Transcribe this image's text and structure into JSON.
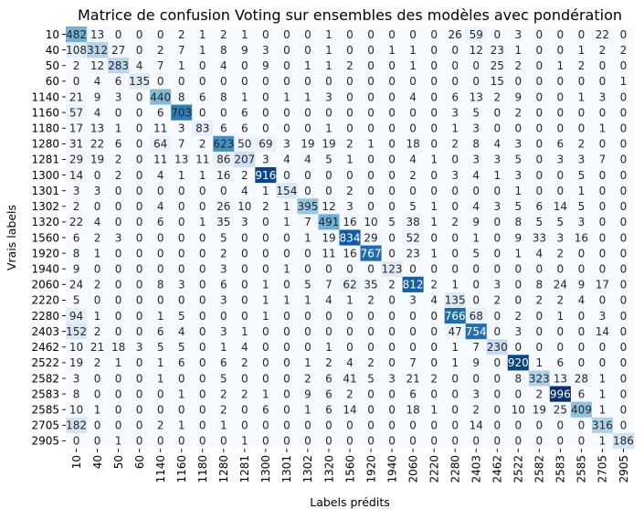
{
  "chart_data": {
    "type": "heatmap",
    "title": "Matrice de confusion Voting sur ensembles des modèles avec pondération",
    "xlabel": "Labels prédits",
    "ylabel": "Vrais labels",
    "colormap": "Blues",
    "vmin": 0,
    "vmax": 996,
    "colorbar": false,
    "gridlines": false,
    "labels": [
      "10",
      "40",
      "50",
      "60",
      "1140",
      "1160",
      "1180",
      "1280",
      "1281",
      "1300",
      "1301",
      "1302",
      "1320",
      "1560",
      "1920",
      "1940",
      "2060",
      "2220",
      "2280",
      "2403",
      "2462",
      "2522",
      "2582",
      "2583",
      "2585",
      "2705",
      "2905"
    ],
    "matrix": [
      [
        482,
        13,
        0,
        0,
        0,
        2,
        1,
        2,
        1,
        0,
        0,
        0,
        1,
        0,
        0,
        0,
        0,
        0,
        26,
        59,
        0,
        3,
        0,
        0,
        0,
        22,
        0
      ],
      [
        108,
        312,
        27,
        0,
        2,
        7,
        1,
        8,
        9,
        3,
        0,
        0,
        1,
        0,
        0,
        1,
        1,
        0,
        0,
        12,
        23,
        1,
        0,
        0,
        1,
        2,
        2
      ],
      [
        2,
        12,
        283,
        4,
        7,
        1,
        0,
        4,
        0,
        9,
        0,
        1,
        1,
        2,
        0,
        0,
        1,
        0,
        0,
        0,
        25,
        2,
        0,
        1,
        2,
        0,
        0
      ],
      [
        0,
        4,
        6,
        135,
        0,
        0,
        0,
        0,
        0,
        0,
        0,
        0,
        0,
        0,
        0,
        0,
        0,
        0,
        0,
        0,
        15,
        0,
        0,
        0,
        0,
        0,
        1
      ],
      [
        21,
        9,
        3,
        0,
        440,
        8,
        6,
        8,
        1,
        0,
        1,
        1,
        3,
        0,
        0,
        0,
        4,
        0,
        6,
        13,
        2,
        9,
        0,
        0,
        1,
        3,
        0
      ],
      [
        57,
        4,
        0,
        0,
        6,
        703,
        0,
        0,
        6,
        0,
        0,
        0,
        0,
        0,
        0,
        0,
        0,
        0,
        3,
        5,
        0,
        2,
        0,
        0,
        0,
        0,
        0
      ],
      [
        17,
        13,
        1,
        0,
        11,
        3,
        83,
        6,
        6,
        0,
        0,
        0,
        1,
        0,
        0,
        0,
        0,
        0,
        1,
        3,
        0,
        0,
        0,
        0,
        0,
        1,
        0
      ],
      [
        31,
        22,
        6,
        0,
        64,
        7,
        2,
        623,
        50,
        69,
        3,
        19,
        19,
        2,
        1,
        0,
        18,
        0,
        2,
        8,
        4,
        3,
        0,
        6,
        2,
        0,
        0
      ],
      [
        29,
        19,
        2,
        0,
        11,
        13,
        11,
        86,
        207,
        3,
        4,
        4,
        5,
        1,
        0,
        0,
        4,
        1,
        0,
        3,
        3,
        5,
        0,
        3,
        3,
        7,
        0
      ],
      [
        14,
        0,
        2,
        0,
        4,
        1,
        1,
        16,
        2,
        916,
        0,
        0,
        0,
        0,
        0,
        0,
        2,
        0,
        3,
        4,
        1,
        3,
        0,
        0,
        5,
        0,
        0
      ],
      [
        3,
        3,
        0,
        0,
        0,
        0,
        0,
        0,
        4,
        1,
        154,
        0,
        0,
        2,
        0,
        0,
        0,
        0,
        0,
        0,
        0,
        1,
        0,
        0,
        1,
        0,
        0
      ],
      [
        2,
        0,
        0,
        0,
        4,
        0,
        0,
        26,
        10,
        2,
        1,
        395,
        12,
        3,
        0,
        0,
        5,
        1,
        0,
        4,
        3,
        5,
        6,
        14,
        5,
        0,
        0
      ],
      [
        22,
        4,
        0,
        0,
        6,
        0,
        1,
        35,
        3,
        0,
        1,
        7,
        491,
        16,
        10,
        5,
        38,
        1,
        2,
        9,
        0,
        8,
        5,
        5,
        3,
        0,
        0
      ],
      [
        6,
        2,
        3,
        0,
        0,
        0,
        0,
        5,
        0,
        0,
        0,
        1,
        19,
        834,
        29,
        0,
        52,
        0,
        0,
        1,
        0,
        9,
        33,
        3,
        16,
        0,
        0
      ],
      [
        8,
        1,
        0,
        0,
        0,
        0,
        0,
        2,
        0,
        0,
        0,
        0,
        11,
        16,
        767,
        0,
        23,
        1,
        0,
        5,
        0,
        1,
        4,
        2,
        0,
        0,
        0
      ],
      [
        9,
        0,
        0,
        0,
        0,
        0,
        0,
        3,
        0,
        0,
        1,
        0,
        0,
        0,
        0,
        123,
        0,
        0,
        0,
        0,
        0,
        0,
        0,
        0,
        0,
        0,
        0
      ],
      [
        24,
        2,
        0,
        0,
        8,
        3,
        0,
        6,
        0,
        1,
        0,
        5,
        7,
        62,
        35,
        2,
        812,
        2,
        1,
        0,
        3,
        0,
        8,
        24,
        9,
        17,
        0
      ],
      [
        5,
        0,
        0,
        0,
        0,
        0,
        0,
        3,
        0,
        1,
        1,
        1,
        4,
        1,
        2,
        0,
        3,
        4,
        135,
        0,
        2,
        0,
        2,
        2,
        4,
        0,
        0
      ],
      [
        94,
        1,
        0,
        0,
        1,
        5,
        0,
        0,
        0,
        1,
        0,
        0,
        0,
        0,
        0,
        0,
        0,
        0,
        766,
        68,
        0,
        2,
        0,
        1,
        0,
        3,
        0
      ],
      [
        152,
        2,
        0,
        0,
        6,
        4,
        0,
        3,
        1,
        0,
        0,
        0,
        0,
        0,
        0,
        0,
        0,
        0,
        47,
        754,
        0,
        3,
        0,
        0,
        0,
        14,
        0
      ],
      [
        10,
        21,
        18,
        3,
        5,
        5,
        0,
        1,
        4,
        0,
        0,
        0,
        1,
        0,
        0,
        0,
        0,
        0,
        1,
        7,
        230,
        0,
        0,
        0,
        0,
        0,
        0
      ],
      [
        19,
        2,
        1,
        0,
        1,
        6,
        0,
        6,
        2,
        0,
        0,
        1,
        2,
        4,
        2,
        0,
        7,
        0,
        1,
        9,
        0,
        920,
        1,
        6,
        0,
        0,
        0
      ],
      [
        3,
        0,
        0,
        0,
        1,
        0,
        0,
        5,
        0,
        0,
        0,
        2,
        6,
        41,
        5,
        3,
        21,
        2,
        0,
        0,
        0,
        8,
        323,
        13,
        28,
        1,
        0
      ],
      [
        8,
        0,
        0,
        0,
        0,
        1,
        0,
        2,
        2,
        1,
        0,
        9,
        6,
        2,
        0,
        0,
        6,
        0,
        0,
        3,
        0,
        0,
        2,
        996,
        6,
        1,
        0
      ],
      [
        10,
        1,
        0,
        0,
        0,
        0,
        0,
        2,
        0,
        6,
        0,
        1,
        6,
        14,
        0,
        0,
        18,
        1,
        0,
        2,
        0,
        10,
        19,
        25,
        409,
        1,
        0
      ],
      [
        182,
        0,
        0,
        0,
        2,
        1,
        0,
        1,
        0,
        0,
        0,
        0,
        0,
        0,
        0,
        0,
        0,
        0,
        0,
        14,
        0,
        0,
        0,
        0,
        0,
        316,
        0
      ],
      [
        0,
        0,
        1,
        0,
        0,
        0,
        0,
        0,
        1,
        0,
        0,
        0,
        0,
        0,
        0,
        0,
        0,
        0,
        0,
        0,
        0,
        0,
        0,
        0,
        0,
        1,
        186
      ]
    ]
  }
}
